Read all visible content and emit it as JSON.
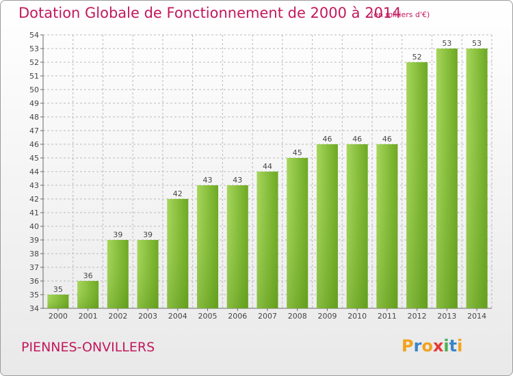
{
  "header": {
    "title": "Dotation Globale de Fonctionnement de 2000 à 2014",
    "subtitle": "(en milliers d'€)"
  },
  "footer": {
    "commune": "PIENNES-ONVILLERS",
    "logo": "Proxiti"
  },
  "colors": {
    "title": "#c2185b",
    "bar_light": "#9fd253",
    "bar_dark": "#62a01a",
    "grid": "#b9b9b9"
  },
  "chart_data": {
    "type": "bar",
    "title": "Dotation Globale de Fonctionnement de 2000 à 2014",
    "subtitle": "(en milliers d'€)",
    "categories": [
      "2000",
      "2001",
      "2002",
      "2003",
      "2004",
      "2005",
      "2006",
      "2007",
      "2008",
      "2009",
      "2010",
      "2011",
      "2012",
      "2013",
      "2014"
    ],
    "values": [
      35,
      36,
      39,
      39,
      42,
      43,
      43,
      44,
      45,
      46,
      46,
      46,
      52,
      53,
      53
    ],
    "xlabel": "",
    "ylabel": "",
    "ylim": [
      34,
      54
    ],
    "yticks": [
      34,
      35,
      36,
      37,
      38,
      39,
      40,
      41,
      42,
      43,
      44,
      45,
      46,
      47,
      48,
      49,
      50,
      51,
      52,
      53,
      54
    ],
    "grid": true,
    "data_labels": true
  }
}
